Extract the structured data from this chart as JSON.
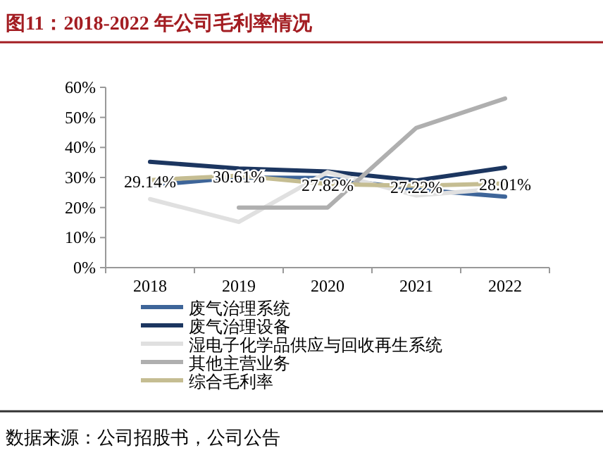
{
  "chart_data": {
    "type": "line",
    "title": "图11：2018-2022 年公司毛利率情况",
    "categories": [
      "2018",
      "2019",
      "2020",
      "2021",
      "2022"
    ],
    "ylim": [
      0,
      60
    ],
    "yticks": [
      {
        "value": 0,
        "label": "0%"
      },
      {
        "value": 10,
        "label": "10%"
      },
      {
        "value": 20,
        "label": "20%"
      },
      {
        "value": 30,
        "label": "30%"
      },
      {
        "value": 40,
        "label": "40%"
      },
      {
        "value": 50,
        "label": "50%"
      },
      {
        "value": 60,
        "label": "60%"
      }
    ],
    "series": [
      {
        "name": "废气治理系统",
        "color": "#3e6599",
        "values": [
          27.4,
          30,
          29.8,
          26,
          23.6
        ]
      },
      {
        "name": "废气治理设备",
        "color": "#1c3660",
        "values": [
          35.2,
          33,
          32,
          29,
          33.3
        ]
      },
      {
        "name": "湿电子化学品供应与回收再生系统",
        "color": "#e0e0e0",
        "values": [
          22.8,
          15.2,
          31.8,
          24,
          26.4
        ]
      },
      {
        "name": "其他主营业务",
        "color": "#afafaf",
        "values": [
          null,
          20,
          20,
          46.5,
          56.3
        ]
      },
      {
        "name": "综合毛利率",
        "color": "#c5bd92",
        "values": [
          29.14,
          30.61,
          27.82,
          27.22,
          28.01
        ],
        "value_labels": [
          "29.14%",
          "30.61%",
          "27.82%",
          "27.22%",
          "28.01%"
        ]
      }
    ],
    "legend": "bottom",
    "grid": false,
    "marker": "none",
    "line_style": "solid",
    "annotations": [
      "数据来源：公司招股书，公司公告"
    ]
  }
}
